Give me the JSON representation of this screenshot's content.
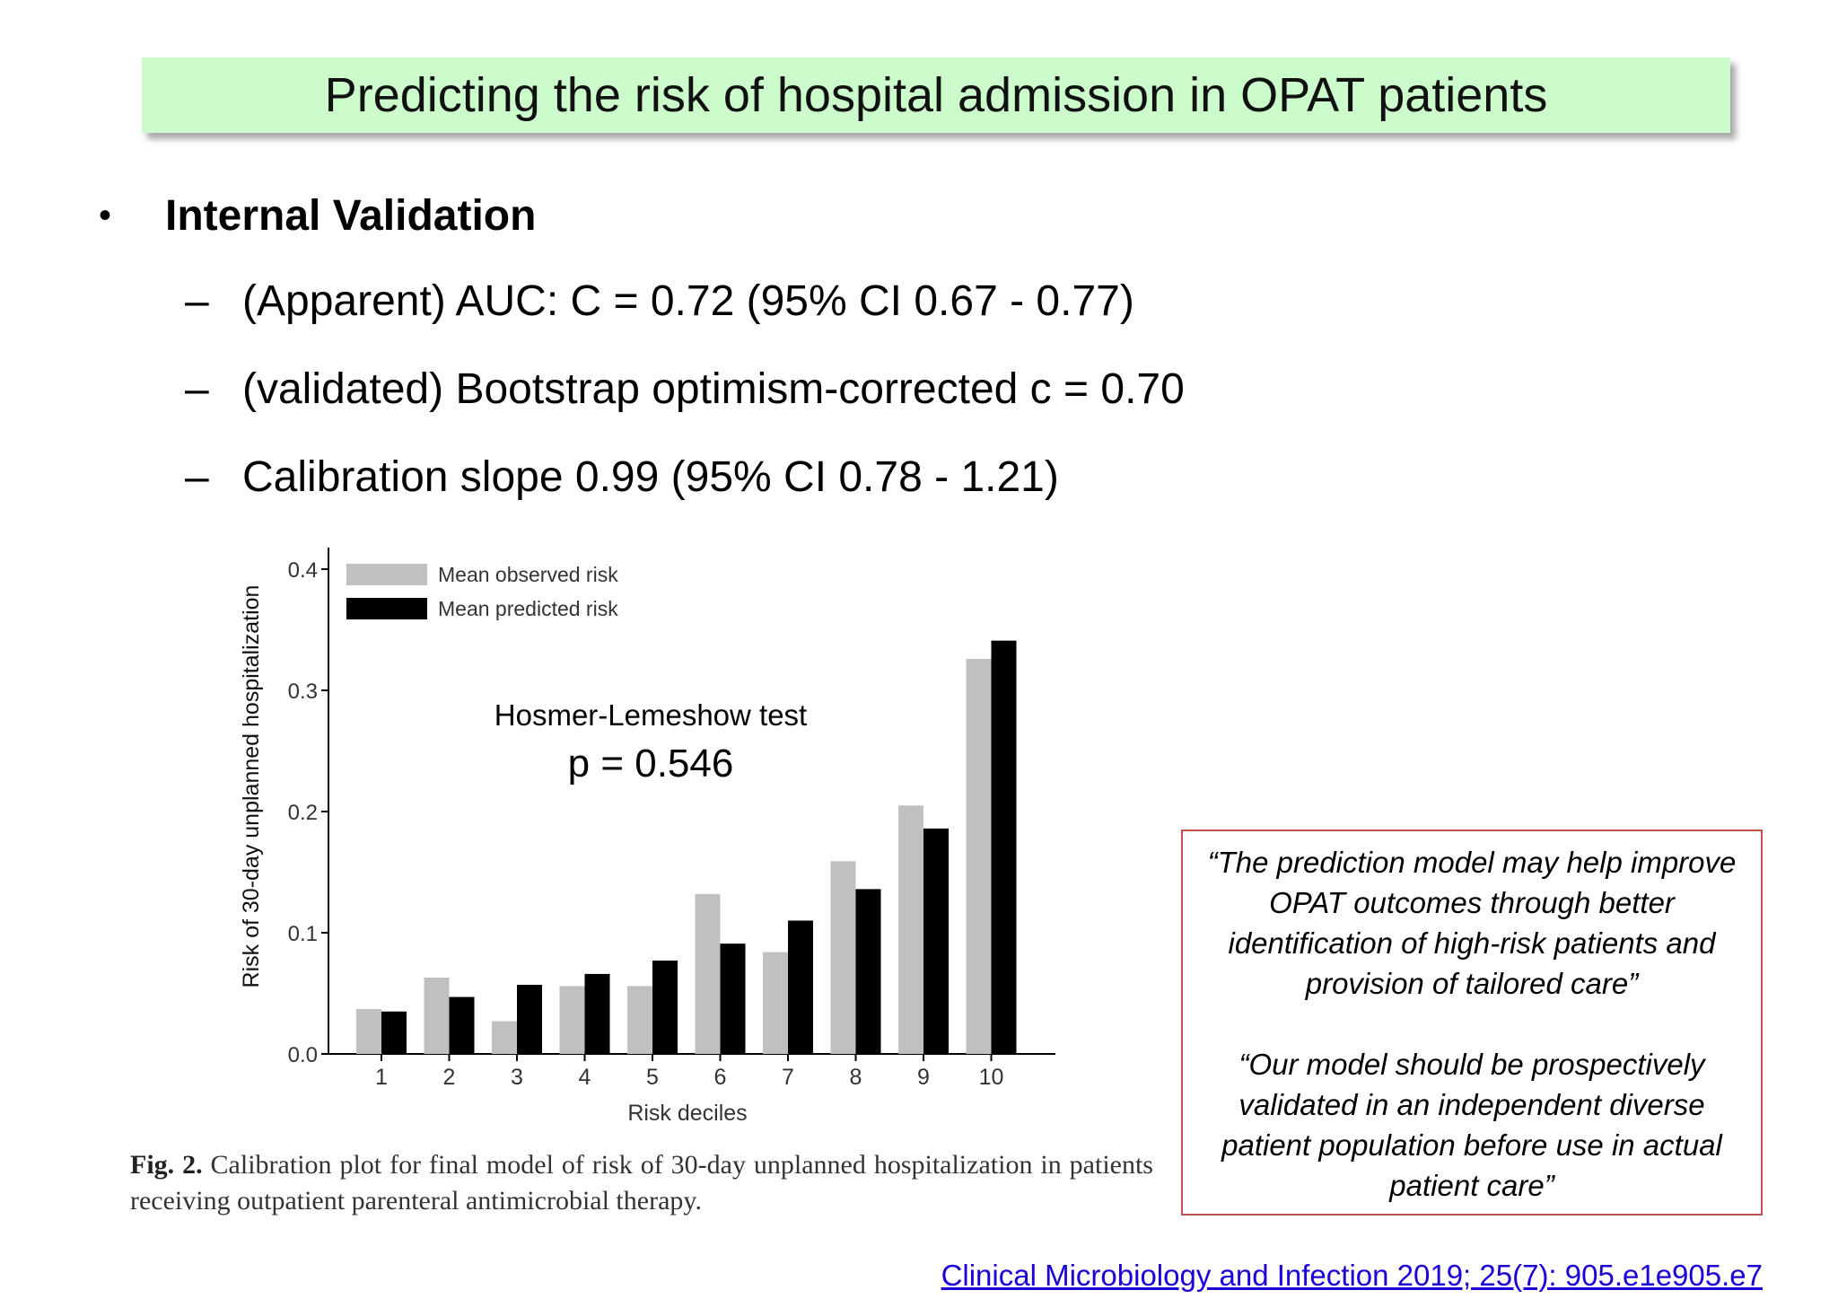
{
  "title": "Predicting the risk of hospital admission in OPAT patients",
  "bullet": {
    "marker": "•",
    "heading": "Internal Validation",
    "dash": "–",
    "items": [
      "(Apparent) AUC:  C = 0.72  (95% CI 0.67 - 0.77)",
      "(validated) Bootstrap optimism-corrected c = 0.70",
      "Calibration slope 0.99 (95% CI 0.78 - 1.21)"
    ]
  },
  "chart_data": {
    "type": "bar",
    "categories": [
      "1",
      "2",
      "3",
      "4",
      "5",
      "6",
      "7",
      "8",
      "9",
      "10"
    ],
    "series": [
      {
        "name": "Mean observed risk",
        "color": "#c0c0c0",
        "values": [
          0.037,
          0.063,
          0.027,
          0.056,
          0.056,
          0.132,
          0.084,
          0.159,
          0.205,
          0.326
        ]
      },
      {
        "name": "Mean predicted risk",
        "color": "#000000",
        "values": [
          0.035,
          0.047,
          0.057,
          0.066,
          0.077,
          0.091,
          0.11,
          0.136,
          0.186,
          0.341
        ]
      }
    ],
    "xlabel": "Risk deciles",
    "ylabel": "Risk of 30-day unplanned hospitalization",
    "ylim": [
      0,
      0.4
    ],
    "yticks": [
      "0.0",
      "0.1",
      "0.2",
      "0.3",
      "0.4"
    ],
    "legend_position": "top-left",
    "grid": false
  },
  "annotation": {
    "test": "Hosmer-Lemeshow test",
    "p": "p =  0.546"
  },
  "caption": {
    "label": "Fig. 2.",
    "text": " Calibration plot for final model of risk of 30-day unplanned hospitalization in patients receiving outpatient parenteral antimicrobial therapy."
  },
  "quotes": [
    "“The prediction model may help improve OPAT outcomes through better identification of high-risk patients and provision of tailored care”",
    "“Our model should be prospectively validated in an independent diverse patient population before use in actual patient care”"
  ],
  "reference": "Clinical Microbiology and Infection 2019; 25(7): 905.e1e905.e7"
}
